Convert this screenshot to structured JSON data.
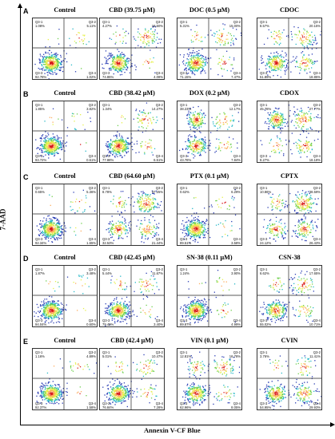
{
  "axis": {
    "y_label": "7-AAD",
    "x_label": "Annexin V-CF Blue"
  },
  "quadrant_labels": [
    "Q3-1",
    "Q3-2",
    "Q3-3",
    "Q3-4"
  ],
  "chart_data": [
    {
      "type": "scatter",
      "row": "A",
      "title": "Control",
      "quadrants": {
        "Q3-1": "1.08%",
        "Q3-2": "5.11%",
        "Q3-3": "92.78%",
        "Q3-4": "1.02%"
      }
    },
    {
      "type": "scatter",
      "row": "",
      "title": "CBD  (39.75  μM)",
      "quadrants": {
        "Q3-1": "4.27%",
        "Q3-2": "19.60%",
        "Q3-3": "74.85%",
        "Q3-4": "4.08%"
      }
    },
    {
      "type": "scatter",
      "row": "",
      "title": "DOC (0.5 μM)",
      "quadrants": {
        "Q3-1": "5.31%",
        "Q3-2": "15.00%",
        "Q3-3": "71.15%",
        "Q3-4": "7.47%"
      }
    },
    {
      "type": "scatter",
      "row": "",
      "title": "CDOC",
      "quadrants": {
        "Q3-1": "8.57%",
        "Q3-2": "20.15%",
        "Q3-3": "51.89%",
        "Q3-4": "18.85%"
      }
    },
    {
      "type": "scatter",
      "row": "B",
      "title": "Control",
      "quadrants": {
        "Q3-1": "1.85%",
        "Q3-2": "3.82%",
        "Q3-3": "93.72%",
        "Q3-4": "0.61%"
      }
    },
    {
      "type": "scatter",
      "row": "",
      "title": "CBD (38.42 μM)",
      "quadrants": {
        "Q3-1": "1.34%",
        "Q3-2": "14.27%",
        "Q3-3": "77.88%",
        "Q3-4": "6.51%"
      }
    },
    {
      "type": "scatter",
      "row": "",
      "title": "DOX (0.2 μM)",
      "quadrants": {
        "Q3-1": "38.23%",
        "Q3-2": "12.17%",
        "Q3-3": "43.78%",
        "Q3-4": "7.84%"
      }
    },
    {
      "type": "scatter",
      "row": "",
      "title": "CDOX",
      "quadrants": {
        "Q3-1": "45.78%",
        "Q3-2": "27.77%",
        "Q3-3": "8.27%",
        "Q3-4": "18.18%"
      }
    },
    {
      "type": "scatter",
      "row": "C",
      "title": "Control",
      "quadrants": {
        "Q3-1": "0.65%",
        "Q3-2": "5.36%",
        "Q3-3": "92.34%",
        "Q3-4": "1.65%"
      }
    },
    {
      "type": "scatter",
      "row": "",
      "title": "CBD (64.60 μM)",
      "quadrants": {
        "Q3-1": "8.78%",
        "Q3-2": "37.25%",
        "Q3-3": "32.53%",
        "Q3-4": "21.44%"
      }
    },
    {
      "type": "scatter",
      "row": "",
      "title": "PTX (0.1 μM)",
      "quadrants": {
        "Q3-1": "0.62%",
        "Q3-2": "6.29%",
        "Q3-3": "89.51%",
        "Q3-4": "3.58%"
      }
    },
    {
      "type": "scatter",
      "row": "",
      "title": "CPTX",
      "quadrants": {
        "Q3-1": "10.86%",
        "Q3-2": "38.59%",
        "Q3-3": "24.12%",
        "Q3-4": "26.43%"
      }
    },
    {
      "type": "scatter",
      "row": "D",
      "title": "Control",
      "quadrants": {
        "Q3-1": "1.87%",
        "Q3-2": "3.48%",
        "Q3-3": "94.04%",
        "Q3-4": "0.60%"
      }
    },
    {
      "type": "scatter",
      "row": "",
      "title": "CBD (42.45 μM)",
      "quadrants": {
        "Q3-1": "5.44%",
        "Q3-2": "11.67%",
        "Q3-3": "79.49%",
        "Q3-4": "3.40%"
      }
    },
    {
      "type": "scatter",
      "row": "",
      "title": "SN-38 (0.11 μM)",
      "quadrants": {
        "Q3-1": "1.24%",
        "Q3-2": "3.90%",
        "Q3-3": "89.87%",
        "Q3-4": "4.99%"
      }
    },
    {
      "type": "scatter",
      "row": "",
      "title": "CSN-38",
      "quadrants": {
        "Q3-1": "6.62%",
        "Q3-2": "17.65%",
        "Q3-3": "55.02%",
        "Q3-4": "10.71%"
      }
    },
    {
      "type": "scatter",
      "row": "E",
      "title": "Control",
      "quadrants": {
        "Q3-1": "1.16%",
        "Q3-2": "4.89%",
        "Q3-3": "92.37%",
        "Q3-4": "1.58%"
      }
    },
    {
      "type": "scatter",
      "row": "",
      "title": "CBD (42.4 μM)",
      "quadrants": {
        "Q3-1": "5.01%",
        "Q3-2": "10.47%",
        "Q3-3": "76.84%",
        "Q3-4": "7.28%"
      }
    },
    {
      "type": "scatter",
      "row": "",
      "title": "VIN (0.1 μM)",
      "quadrants": {
        "Q3-1": "12.81%",
        "Q3-2": "16.78%",
        "Q3-3": "62.96%",
        "Q3-4": "8.05%"
      }
    },
    {
      "type": "scatter",
      "row": "",
      "title": "CVIN",
      "quadrants": {
        "Q3-1": "3.76%",
        "Q3-2": "11.41%",
        "Q3-3": "54.95%",
        "Q3-4": "29.93%"
      }
    }
  ]
}
